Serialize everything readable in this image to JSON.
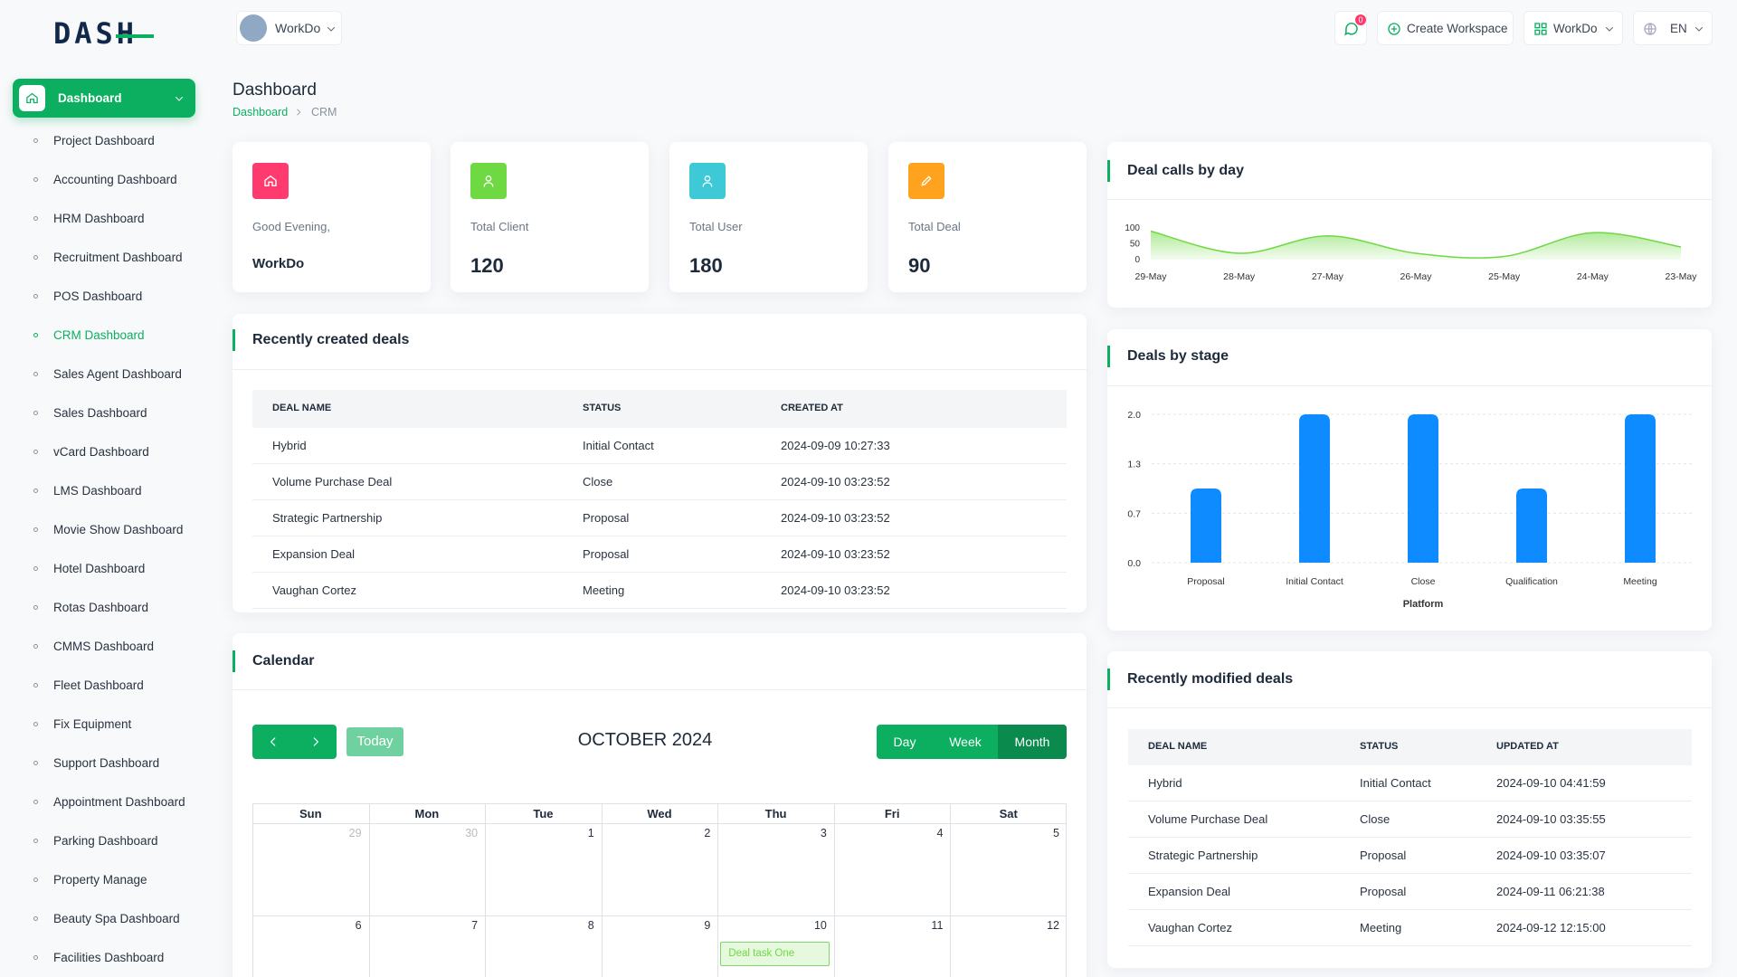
{
  "logo": "DASH",
  "header": {
    "workspace": "WorkDo",
    "notifications": 0,
    "create_workspace": "Create Workspace",
    "workspace_menu": "WorkDo",
    "language": "EN"
  },
  "sidebar": {
    "main": "Dashboard",
    "items": [
      {
        "label": "Project Dashboard"
      },
      {
        "label": "Accounting Dashboard"
      },
      {
        "label": "HRM Dashboard"
      },
      {
        "label": "Recruitment Dashboard"
      },
      {
        "label": "POS Dashboard"
      },
      {
        "label": "CRM Dashboard",
        "active": true
      },
      {
        "label": "Sales Agent Dashboard"
      },
      {
        "label": "Sales Dashboard"
      },
      {
        "label": "vCard Dashboard"
      },
      {
        "label": "LMS Dashboard"
      },
      {
        "label": "Movie Show Dashboard"
      },
      {
        "label": "Hotel Dashboard"
      },
      {
        "label": "Rotas Dashboard"
      },
      {
        "label": "CMMS Dashboard"
      },
      {
        "label": "Fleet Dashboard"
      },
      {
        "label": "Fix Equipment"
      },
      {
        "label": "Support Dashboard"
      },
      {
        "label": "Appointment Dashboard"
      },
      {
        "label": "Parking Dashboard"
      },
      {
        "label": "Property Manage"
      },
      {
        "label": "Beauty Spa Dashboard"
      },
      {
        "label": "Facilities Dashboard"
      }
    ]
  },
  "page": {
    "title": "Dashboard",
    "breadcrumb": [
      "Dashboard",
      "CRM"
    ]
  },
  "stats": [
    {
      "label": "Good Evening,",
      "value": "WorkDo",
      "color": "#ff3a6e"
    },
    {
      "label": "Total Client",
      "value": 120,
      "color": "#6fd943"
    },
    {
      "label": "Total User",
      "value": 180,
      "color": "#3ec9d6"
    },
    {
      "label": "Total Deal",
      "value": 90,
      "color": "#ffa21d"
    }
  ],
  "recent_created": {
    "title": "Recently created deals",
    "columns": [
      "DEAL NAME",
      "STATUS",
      "CREATED AT"
    ],
    "rows": [
      [
        "Hybrid",
        "Initial Contact",
        "2024-09-09 10:27:33"
      ],
      [
        "Volume Purchase Deal",
        "Close",
        "2024-09-10 03:23:52"
      ],
      [
        "Strategic Partnership",
        "Proposal",
        "2024-09-10 03:23:52"
      ],
      [
        "Expansion Deal",
        "Proposal",
        "2024-09-10 03:23:52"
      ],
      [
        "Vaughan Cortez",
        "Meeting",
        "2024-09-10 03:23:52"
      ]
    ]
  },
  "recent_modified": {
    "title": "Recently modified deals",
    "columns": [
      "DEAL NAME",
      "STATUS",
      "UPDATED AT"
    ],
    "rows": [
      [
        "Hybrid",
        "Initial Contact",
        "2024-09-10 04:41:59"
      ],
      [
        "Volume Purchase Deal",
        "Close",
        "2024-09-10 03:35:55"
      ],
      [
        "Strategic Partnership",
        "Proposal",
        "2024-09-10 03:35:07"
      ],
      [
        "Expansion Deal",
        "Proposal",
        "2024-09-11 06:21:38"
      ],
      [
        "Vaughan Cortez",
        "Meeting",
        "2024-09-12 12:15:00"
      ]
    ]
  },
  "calendar": {
    "title": "Calendar",
    "today": "Today",
    "month": "OCTOBER 2024",
    "views": [
      {
        "label": "Day"
      },
      {
        "label": "Week"
      },
      {
        "label": "Month",
        "active": true
      }
    ],
    "weekdays": [
      "Sun",
      "Mon",
      "Tue",
      "Wed",
      "Thu",
      "Fri",
      "Sat"
    ],
    "weeks": [
      [
        29,
        30,
        1,
        2,
        3,
        4,
        5
      ],
      [
        6,
        7,
        8,
        9,
        10,
        11,
        12
      ]
    ],
    "events": [
      {
        "day": 10,
        "title": "Deal task One"
      }
    ]
  },
  "chart_data": [
    {
      "type": "line",
      "title": "Deal calls by day",
      "categories": [
        "29-May",
        "28-May",
        "27-May",
        "26-May",
        "25-May",
        "24-May",
        "23-May"
      ],
      "values": [
        90,
        20,
        75,
        20,
        10,
        85,
        40
      ],
      "color": "#6fd943",
      "ylim": [
        0,
        100
      ],
      "yticks": [
        0,
        50,
        100
      ]
    },
    {
      "type": "bar",
      "title": "Deals by stage",
      "x_label": "Platform",
      "categories": [
        "Proposal",
        "Initial Contact",
        "Close",
        "Qualification",
        "Meeting"
      ],
      "values": [
        1,
        2,
        2,
        1,
        2
      ],
      "color": "#0d8bff",
      "ylim": [
        0,
        2
      ],
      "yticks": [
        {
          "value": 0,
          "label": "0.0"
        },
        {
          "value": 0.6667,
          "label": "0.7"
        },
        {
          "value": 1.3333,
          "label": "1.3"
        },
        {
          "value": 2,
          "label": "2.0"
        }
      ],
      "grid": true
    }
  ]
}
